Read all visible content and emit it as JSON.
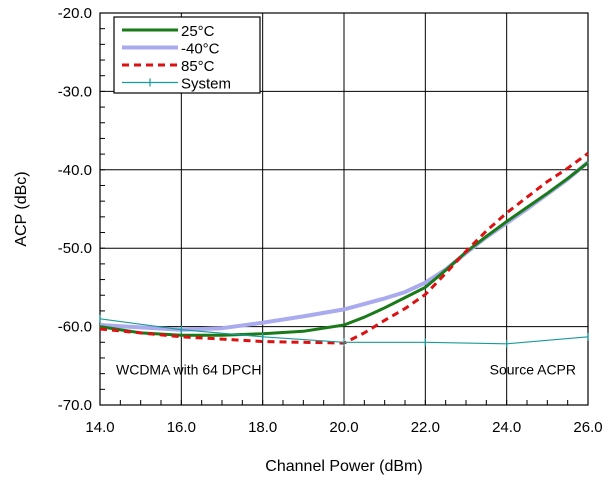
{
  "chart_data": {
    "type": "line",
    "title": "",
    "xlabel": "Channel Power (dBm)",
    "ylabel": "ACP (dBc)",
    "xlim": [
      14,
      26
    ],
    "ylim": [
      -70,
      -20
    ],
    "xticks": [
      14,
      16,
      18,
      20,
      22,
      24,
      26
    ],
    "yticks": [
      -70,
      -60,
      -50,
      -40,
      -30,
      -20
    ],
    "xtick_labels": [
      "14.0",
      "16.0",
      "18.0",
      "20.0",
      "22.0",
      "24.0",
      "26.0"
    ],
    "ytick_labels": [
      "-70.0",
      "-60.0",
      "-50.0",
      "-40.0",
      "-30.0",
      "-20.0"
    ],
    "grid": true,
    "legend_position": "top-left",
    "annotations": [
      {
        "text": "WCDMA with 64 DPCH",
        "position": "lower-left"
      },
      {
        "text": "Source ACPR",
        "position": "lower-right"
      }
    ],
    "series": [
      {
        "name": "25°C",
        "color": "#1a7a1a",
        "style": "solid",
        "x": [
          14,
          15,
          16,
          17,
          18,
          19,
          20,
          20.5,
          21,
          21.5,
          22,
          22.5,
          23,
          23.5,
          24,
          24.5,
          25,
          25.5,
          26
        ],
        "y": [
          -60.0,
          -60.8,
          -61.1,
          -61.1,
          -60.9,
          -60.6,
          -59.8,
          -58.8,
          -57.6,
          -56.3,
          -55.0,
          -52.8,
          -50.5,
          -48.5,
          -46.6,
          -44.8,
          -43.0,
          -41.1,
          -39.1
        ]
      },
      {
        "name": "-40°C",
        "color": "#aaaaee",
        "style": "solid-thick",
        "x": [
          14,
          15,
          16,
          17,
          18,
          19,
          20,
          20.5,
          21,
          21.5,
          22,
          22.5,
          23,
          23.5,
          24,
          24.5,
          25,
          25.5,
          26
        ],
        "y": [
          -59.8,
          -60.1,
          -60.4,
          -60.2,
          -59.5,
          -58.7,
          -57.8,
          -57.1,
          -56.4,
          -55.6,
          -54.4,
          -52.7,
          -50.6,
          -48.6,
          -46.8,
          -45.0,
          -43.1,
          -41.2,
          -39.0
        ]
      },
      {
        "name": "85°C",
        "color": "#dd1111",
        "style": "dashed",
        "x": [
          14,
          15,
          16,
          17,
          18,
          19,
          20,
          20.5,
          21,
          21.5,
          22,
          22.5,
          23,
          23.5,
          24,
          24.5,
          25,
          25.5,
          26
        ],
        "y": [
          -60.3,
          -60.8,
          -61.3,
          -61.6,
          -61.9,
          -62.0,
          -62.1,
          -60.8,
          -59.2,
          -57.7,
          -55.9,
          -53.2,
          -50.4,
          -47.8,
          -45.5,
          -43.5,
          -41.5,
          -39.8,
          -37.9
        ]
      },
      {
        "name": "System",
        "color": "#1a9a9a",
        "style": "thin-marker",
        "x": [
          14,
          16,
          18,
          20,
          22,
          24,
          26
        ],
        "y": [
          -59.0,
          -60.4,
          -61.3,
          -62.0,
          -62.0,
          -62.2,
          -61.3
        ]
      }
    ]
  }
}
